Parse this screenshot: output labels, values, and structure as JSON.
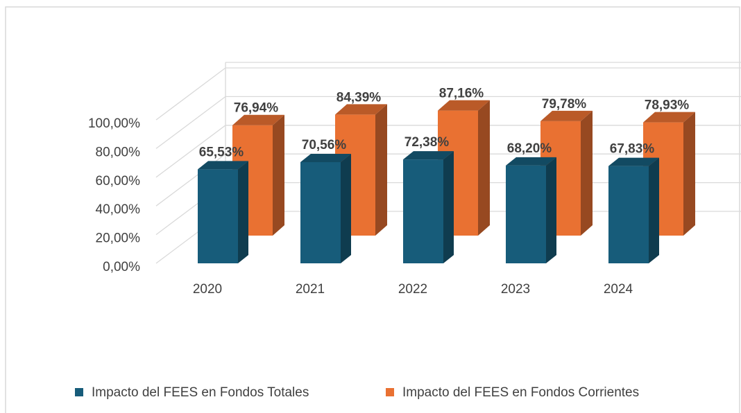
{
  "chart_data": {
    "type": "bar3d",
    "categories": [
      "2020",
      "2021",
      "2022",
      "2023",
      "2024"
    ],
    "series": [
      {
        "name": "Impacto del FEES en Fondos Totales",
        "color": "#175c7a",
        "values": [
          65.53,
          70.56,
          72.38,
          68.2,
          67.83
        ],
        "value_labels": [
          "65,53%",
          "70,56%",
          "72,38%",
          "68,20%",
          "67,83%"
        ]
      },
      {
        "name": "Impacto del FEES en Fondos Corrientes",
        "color": "#e97132",
        "values": [
          76.94,
          84.39,
          87.16,
          79.78,
          78.93
        ],
        "value_labels": [
          "76,94%",
          "84,39%",
          "87,16%",
          "79,78%",
          "78,93%"
        ]
      }
    ],
    "ylim": [
      0,
      100
    ],
    "yticks": [
      {
        "value": 0,
        "label": "0,00%"
      },
      {
        "value": 20,
        "label": "20,00%"
      },
      {
        "value": 40,
        "label": "40,00%"
      },
      {
        "value": 60,
        "label": "60,00%"
      },
      {
        "value": 80,
        "label": "80,00%"
      },
      {
        "value": 100,
        "label": "100,00%"
      }
    ],
    "grid": true,
    "legend": "bottom"
  }
}
